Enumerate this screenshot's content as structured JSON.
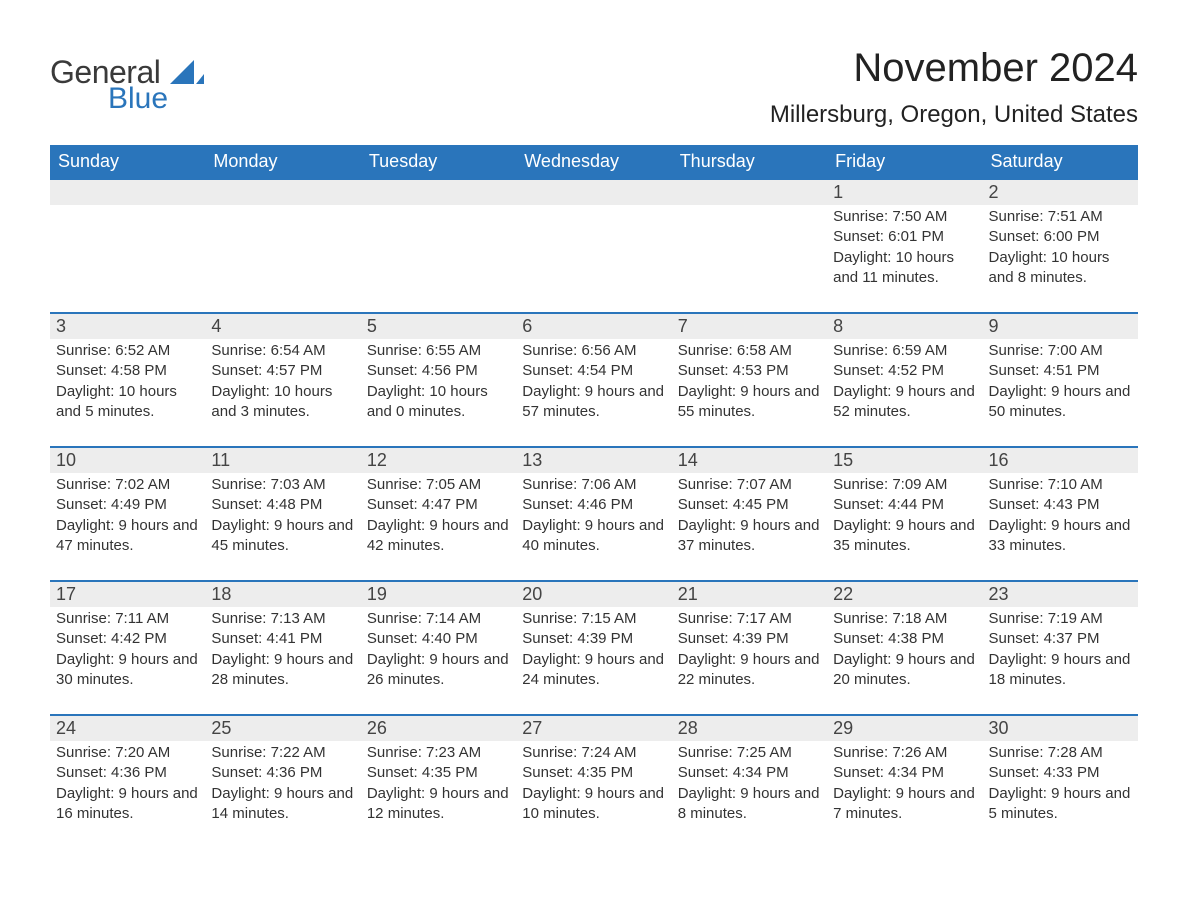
{
  "logo": {
    "word1": "General",
    "word2": "Blue",
    "text_color": "#3a3a3a",
    "accent_color": "#2a75bb"
  },
  "title": {
    "month_year": "November 2024",
    "location": "Millersburg, Oregon, United States",
    "month_fontsize": 40,
    "location_fontsize": 24
  },
  "colors": {
    "header_bg": "#2a75bb",
    "header_text": "#ffffff",
    "week_border": "#2a75bb",
    "daynum_bg": "#ededed",
    "body_text": "#333333",
    "page_bg": "#ffffff"
  },
  "day_names": [
    "Sunday",
    "Monday",
    "Tuesday",
    "Wednesday",
    "Thursday",
    "Friday",
    "Saturday"
  ],
  "weeks": [
    [
      null,
      null,
      null,
      null,
      null,
      {
        "n": "1",
        "sunrise": "7:50 AM",
        "sunset": "6:01 PM",
        "daylight": "10 hours and 11 minutes."
      },
      {
        "n": "2",
        "sunrise": "7:51 AM",
        "sunset": "6:00 PM",
        "daylight": "10 hours and 8 minutes."
      }
    ],
    [
      {
        "n": "3",
        "sunrise": "6:52 AM",
        "sunset": "4:58 PM",
        "daylight": "10 hours and 5 minutes."
      },
      {
        "n": "4",
        "sunrise": "6:54 AM",
        "sunset": "4:57 PM",
        "daylight": "10 hours and 3 minutes."
      },
      {
        "n": "5",
        "sunrise": "6:55 AM",
        "sunset": "4:56 PM",
        "daylight": "10 hours and 0 minutes."
      },
      {
        "n": "6",
        "sunrise": "6:56 AM",
        "sunset": "4:54 PM",
        "daylight": "9 hours and 57 minutes."
      },
      {
        "n": "7",
        "sunrise": "6:58 AM",
        "sunset": "4:53 PM",
        "daylight": "9 hours and 55 minutes."
      },
      {
        "n": "8",
        "sunrise": "6:59 AM",
        "sunset": "4:52 PM",
        "daylight": "9 hours and 52 minutes."
      },
      {
        "n": "9",
        "sunrise": "7:00 AM",
        "sunset": "4:51 PM",
        "daylight": "9 hours and 50 minutes."
      }
    ],
    [
      {
        "n": "10",
        "sunrise": "7:02 AM",
        "sunset": "4:49 PM",
        "daylight": "9 hours and 47 minutes."
      },
      {
        "n": "11",
        "sunrise": "7:03 AM",
        "sunset": "4:48 PM",
        "daylight": "9 hours and 45 minutes."
      },
      {
        "n": "12",
        "sunrise": "7:05 AM",
        "sunset": "4:47 PM",
        "daylight": "9 hours and 42 minutes."
      },
      {
        "n": "13",
        "sunrise": "7:06 AM",
        "sunset": "4:46 PM",
        "daylight": "9 hours and 40 minutes."
      },
      {
        "n": "14",
        "sunrise": "7:07 AM",
        "sunset": "4:45 PM",
        "daylight": "9 hours and 37 minutes."
      },
      {
        "n": "15",
        "sunrise": "7:09 AM",
        "sunset": "4:44 PM",
        "daylight": "9 hours and 35 minutes."
      },
      {
        "n": "16",
        "sunrise": "7:10 AM",
        "sunset": "4:43 PM",
        "daylight": "9 hours and 33 minutes."
      }
    ],
    [
      {
        "n": "17",
        "sunrise": "7:11 AM",
        "sunset": "4:42 PM",
        "daylight": "9 hours and 30 minutes."
      },
      {
        "n": "18",
        "sunrise": "7:13 AM",
        "sunset": "4:41 PM",
        "daylight": "9 hours and 28 minutes."
      },
      {
        "n": "19",
        "sunrise": "7:14 AM",
        "sunset": "4:40 PM",
        "daylight": "9 hours and 26 minutes."
      },
      {
        "n": "20",
        "sunrise": "7:15 AM",
        "sunset": "4:39 PM",
        "daylight": "9 hours and 24 minutes."
      },
      {
        "n": "21",
        "sunrise": "7:17 AM",
        "sunset": "4:39 PM",
        "daylight": "9 hours and 22 minutes."
      },
      {
        "n": "22",
        "sunrise": "7:18 AM",
        "sunset": "4:38 PM",
        "daylight": "9 hours and 20 minutes."
      },
      {
        "n": "23",
        "sunrise": "7:19 AM",
        "sunset": "4:37 PM",
        "daylight": "9 hours and 18 minutes."
      }
    ],
    [
      {
        "n": "24",
        "sunrise": "7:20 AM",
        "sunset": "4:36 PM",
        "daylight": "9 hours and 16 minutes."
      },
      {
        "n": "25",
        "sunrise": "7:22 AM",
        "sunset": "4:36 PM",
        "daylight": "9 hours and 14 minutes."
      },
      {
        "n": "26",
        "sunrise": "7:23 AM",
        "sunset": "4:35 PM",
        "daylight": "9 hours and 12 minutes."
      },
      {
        "n": "27",
        "sunrise": "7:24 AM",
        "sunset": "4:35 PM",
        "daylight": "9 hours and 10 minutes."
      },
      {
        "n": "28",
        "sunrise": "7:25 AM",
        "sunset": "4:34 PM",
        "daylight": "9 hours and 8 minutes."
      },
      {
        "n": "29",
        "sunrise": "7:26 AM",
        "sunset": "4:34 PM",
        "daylight": "9 hours and 7 minutes."
      },
      {
        "n": "30",
        "sunrise": "7:28 AM",
        "sunset": "4:33 PM",
        "daylight": "9 hours and 5 minutes."
      }
    ]
  ],
  "labels": {
    "sunrise": "Sunrise:",
    "sunset": "Sunset:",
    "daylight": "Daylight:"
  }
}
